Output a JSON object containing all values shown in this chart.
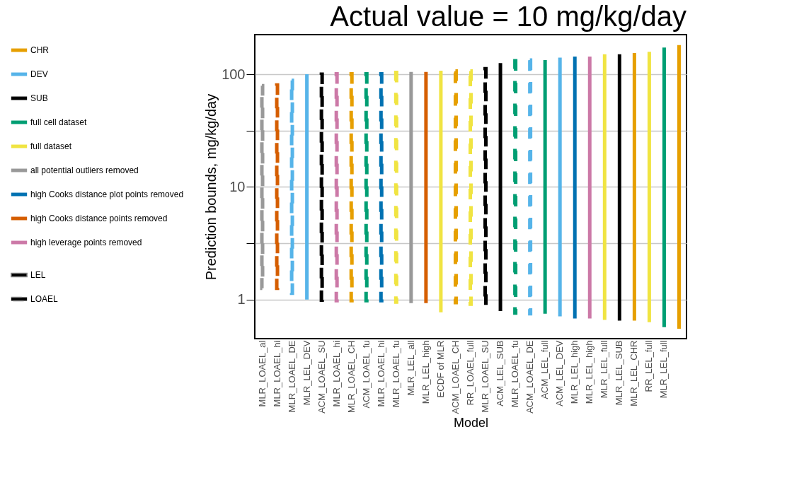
{
  "chart_data": {
    "type": "bar",
    "title": "Actual value = 10 mg/kg/day",
    "xlabel": "Model",
    "ylabel": "Prediction bounds, mg/kg/day",
    "categories": [
      "MLR_LOAEL_al",
      "MLR_LOAEL_hi",
      "MLR_LOAEL_DE",
      "MLR_LEL_DEV",
      "ACM_LOAEL_SU",
      "MLR_LOAEL_hi",
      "MLR_LOAEL_CH",
      "ACM_LOAEL_fu",
      "MLR_LOAEL_hi",
      "MLR_LOAEL_fu",
      "MLR_LEL_all",
      "MLR_LEL_high",
      "ECDF of MLR",
      "ACM_LOAEL_CH",
      "RR_LOAEL_full",
      "MLR_LOAEL_SU",
      "ACM_LEL_SUB",
      "MLR_LOAEL_fu",
      "ACM_LOAEL_DE",
      "ACM_LEL_full",
      "ACM_LEL_DEV",
      "MLR_LEL_high",
      "MLR_LEL_high",
      "MLR_LEL_full",
      "MLR_LEL_SUB",
      "MLR_LEL_CHR",
      "RR_LEL_full",
      "MLR_LEL_full",
      null
    ],
    "series": [
      {
        "name": "CHR",
        "color": "#e69f00",
        "line_style": "solid",
        "values": [
          null,
          null,
          null,
          null,
          null,
          null,
          null,
          null,
          null,
          null,
          null,
          null,
          null,
          null,
          null,
          null,
          null,
          null,
          null,
          null,
          null,
          null,
          null,
          null,
          null,
          154,
          null,
          null,
          181
        ],
        "base": [
          null,
          null,
          null,
          null,
          null,
          null,
          null,
          null,
          null,
          null,
          null,
          null,
          null,
          null,
          null,
          null,
          null,
          null,
          null,
          null,
          null,
          null,
          null,
          null,
          null,
          0.65,
          null,
          null,
          0.55
        ]
      },
      {
        "name": "DEV",
        "color": "#56b4e9",
        "line_style": "solid",
        "values": [
          null,
          null,
          null,
          99,
          null,
          null,
          null,
          null,
          null,
          null,
          null,
          null,
          null,
          null,
          null,
          null,
          null,
          null,
          null,
          null,
          140,
          null,
          null,
          null,
          null,
          null,
          null,
          null,
          null
        ],
        "base": [
          null,
          null,
          null,
          1.0,
          null,
          null,
          null,
          null,
          null,
          null,
          null,
          null,
          null,
          null,
          null,
          null,
          null,
          null,
          null,
          null,
          0.71,
          null,
          null,
          null,
          null,
          null,
          null,
          null,
          null
        ]
      },
      {
        "name": "SUB",
        "color": "#000000",
        "line_style": "solid",
        "values": [
          null,
          null,
          null,
          null,
          null,
          null,
          null,
          null,
          null,
          null,
          null,
          null,
          null,
          null,
          null,
          null,
          125,
          null,
          null,
          null,
          null,
          null,
          null,
          null,
          150,
          null,
          null,
          null,
          null
        ],
        "base": [
          null,
          null,
          null,
          null,
          null,
          null,
          null,
          null,
          null,
          null,
          null,
          null,
          null,
          null,
          null,
          null,
          0.79,
          null,
          null,
          null,
          null,
          null,
          null,
          null,
          0.65,
          null,
          null,
          null,
          null
        ]
      },
      {
        "name": "full cell dataset",
        "color": "#009e73",
        "line_style": "solid",
        "values": [
          null,
          null,
          null,
          null,
          null,
          null,
          null,
          null,
          null,
          null,
          null,
          null,
          null,
          null,
          null,
          null,
          null,
          null,
          null,
          133,
          null,
          null,
          null,
          null,
          null,
          null,
          null,
          172,
          null
        ],
        "base": [
          null,
          null,
          null,
          null,
          null,
          null,
          null,
          null,
          null,
          null,
          null,
          null,
          null,
          null,
          null,
          null,
          null,
          null,
          null,
          0.75,
          null,
          null,
          null,
          null,
          null,
          null,
          null,
          0.57,
          null
        ]
      },
      {
        "name": "full dataset",
        "color": "#f0e442",
        "line_style": "solid",
        "values": [
          null,
          null,
          null,
          null,
          null,
          null,
          null,
          null,
          null,
          null,
          null,
          null,
          107,
          null,
          null,
          null,
          null,
          null,
          null,
          null,
          null,
          null,
          null,
          150,
          null,
          null,
          158,
          null,
          null
        ],
        "base": [
          null,
          null,
          null,
          null,
          null,
          null,
          null,
          null,
          null,
          null,
          null,
          null,
          0.77,
          null,
          null,
          null,
          null,
          null,
          null,
          null,
          null,
          null,
          null,
          0.66,
          null,
          null,
          0.63,
          null,
          null
        ]
      },
      {
        "name": "all potential outliers removed",
        "color": "#999999",
        "line_style": "solid",
        "values": [
          null,
          null,
          null,
          null,
          null,
          null,
          null,
          null,
          null,
          null,
          104,
          null,
          null,
          null,
          null,
          null,
          null,
          null,
          null,
          null,
          null,
          null,
          null,
          null,
          null,
          null,
          null,
          null,
          null
        ],
        "base": [
          null,
          null,
          null,
          null,
          null,
          null,
          null,
          null,
          null,
          null,
          0.93,
          null,
          null,
          null,
          null,
          null,
          null,
          null,
          null,
          null,
          null,
          null,
          null,
          null,
          null,
          null,
          null,
          null,
          null
        ]
      },
      {
        "name": "high Cooks distance plot points removed",
        "color": "#0072b2",
        "line_style": "solid",
        "values": [
          null,
          null,
          null,
          null,
          null,
          null,
          null,
          null,
          null,
          null,
          null,
          null,
          null,
          null,
          null,
          null,
          null,
          null,
          null,
          null,
          null,
          143,
          null,
          null,
          null,
          null,
          null,
          null,
          null
        ],
        "base": [
          null,
          null,
          null,
          null,
          null,
          null,
          null,
          null,
          null,
          null,
          null,
          null,
          null,
          null,
          null,
          null,
          null,
          null,
          null,
          null,
          null,
          0.68,
          null,
          null,
          null,
          null,
          null,
          null,
          null
        ]
      },
      {
        "name": "high Cooks distance points removed",
        "color": "#d55e00",
        "line_style": "solid",
        "values": [
          null,
          null,
          null,
          null,
          null,
          null,
          null,
          null,
          null,
          null,
          null,
          104,
          null,
          null,
          null,
          null,
          null,
          null,
          null,
          null,
          null,
          null,
          null,
          null,
          null,
          null,
          null,
          null,
          null
        ],
        "base": [
          null,
          null,
          null,
          null,
          null,
          null,
          null,
          null,
          null,
          null,
          null,
          0.93,
          null,
          null,
          null,
          null,
          null,
          null,
          null,
          null,
          null,
          null,
          null,
          null,
          null,
          null,
          null,
          null,
          null
        ]
      },
      {
        "name": "high leverage points removed",
        "color": "#cc79a7",
        "line_style": "solid",
        "values": [
          null,
          null,
          null,
          null,
          null,
          null,
          null,
          null,
          null,
          null,
          null,
          null,
          null,
          null,
          null,
          null,
          null,
          null,
          null,
          null,
          null,
          null,
          143,
          null,
          null,
          null,
          null,
          null,
          null
        ],
        "base": [
          null,
          null,
          null,
          null,
          null,
          null,
          null,
          null,
          null,
          null,
          null,
          null,
          null,
          null,
          null,
          null,
          null,
          null,
          null,
          null,
          null,
          null,
          0.68,
          null,
          null,
          null,
          null,
          null,
          null
        ]
      },
      {
        "color": "#e69f00",
        "line_style": "dashed",
        "values": [
          null,
          null,
          null,
          null,
          null,
          null,
          100,
          null,
          null,
          null,
          null,
          null,
          null,
          106,
          null,
          null,
          null,
          null,
          null,
          null,
          null,
          null,
          null,
          null,
          null,
          null,
          null,
          null,
          null
        ],
        "base": [
          null,
          null,
          null,
          null,
          null,
          null,
          0.98,
          null,
          null,
          null,
          null,
          null,
          null,
          0.94,
          null,
          null,
          null,
          null,
          null,
          null,
          null,
          null,
          null,
          null,
          null,
          null,
          null,
          null,
          null
        ]
      },
      {
        "color": "#56b4e9",
        "line_style": "dashed",
        "values": [
          null,
          null,
          87,
          null,
          null,
          null,
          null,
          null,
          null,
          null,
          null,
          null,
          null,
          null,
          null,
          null,
          null,
          null,
          133,
          null,
          null,
          null,
          null,
          null,
          null,
          null,
          null,
          null,
          null
        ],
        "base": [
          null,
          null,
          1.14,
          null,
          null,
          null,
          null,
          null,
          null,
          null,
          null,
          null,
          null,
          null,
          null,
          null,
          null,
          null,
          0.75,
          null,
          null,
          null,
          null,
          null,
          null,
          null,
          null,
          null,
          null
        ]
      },
      {
        "color": "#000000",
        "line_style": "dashed",
        "values": [
          null,
          null,
          null,
          null,
          99,
          null,
          null,
          null,
          null,
          null,
          null,
          null,
          null,
          null,
          null,
          111,
          null,
          null,
          null,
          null,
          null,
          null,
          null,
          null,
          null,
          null,
          null,
          null,
          null
        ],
        "base": [
          null,
          null,
          null,
          null,
          0.99,
          null,
          null,
          null,
          null,
          null,
          null,
          null,
          null,
          null,
          null,
          0.87,
          null,
          null,
          null,
          null,
          null,
          null,
          null,
          null,
          null,
          null,
          null,
          null,
          null
        ]
      },
      {
        "color": "#009e73",
        "line_style": "dashed",
        "values": [
          null,
          null,
          null,
          null,
          null,
          null,
          null,
          100,
          null,
          null,
          null,
          null,
          null,
          null,
          null,
          null,
          null,
          131,
          null,
          null,
          null,
          null,
          null,
          null,
          null,
          null,
          null,
          null,
          null
        ],
        "base": [
          null,
          null,
          null,
          null,
          null,
          null,
          null,
          0.98,
          null,
          null,
          null,
          null,
          null,
          null,
          null,
          null,
          null,
          0.76,
          null,
          null,
          null,
          null,
          null,
          null,
          null,
          null,
          null,
          null,
          null
        ]
      },
      {
        "color": "#f0e442",
        "line_style": "dashed",
        "values": [
          null,
          null,
          null,
          null,
          null,
          null,
          null,
          null,
          null,
          103,
          null,
          null,
          null,
          null,
          106,
          null,
          null,
          null,
          null,
          null,
          null,
          null,
          null,
          null,
          null,
          null,
          null,
          null,
          null
        ],
        "base": [
          null,
          null,
          null,
          null,
          null,
          null,
          null,
          null,
          null,
          0.95,
          null,
          null,
          null,
          null,
          0.91,
          null,
          null,
          null,
          null,
          null,
          null,
          null,
          null,
          null,
          null,
          null,
          null,
          null,
          null
        ]
      },
      {
        "color": "#999999",
        "line_style": "dashed",
        "values": [
          78,
          null,
          null,
          null,
          null,
          null,
          null,
          null,
          null,
          null,
          null,
          null,
          null,
          null,
          null,
          null,
          null,
          null,
          null,
          null,
          null,
          null,
          null,
          null,
          null,
          null,
          null,
          null,
          null
        ],
        "base": [
          1.26,
          null,
          null,
          null,
          null,
          null,
          null,
          null,
          null,
          null,
          null,
          null,
          null,
          null,
          null,
          null,
          null,
          null,
          null,
          null,
          null,
          null,
          null,
          null,
          null,
          null,
          null,
          null,
          null
        ]
      },
      {
        "color": "#0072b2",
        "line_style": "dashed",
        "values": [
          null,
          null,
          null,
          null,
          null,
          null,
          null,
          null,
          100,
          null,
          null,
          null,
          null,
          null,
          null,
          null,
          null,
          null,
          null,
          null,
          null,
          null,
          null,
          null,
          null,
          null,
          null,
          null,
          null
        ],
        "base": [
          null,
          null,
          null,
          null,
          null,
          null,
          null,
          null,
          0.98,
          null,
          null,
          null,
          null,
          null,
          null,
          null,
          null,
          null,
          null,
          null,
          null,
          null,
          null,
          null,
          null,
          null,
          null,
          null,
          null
        ]
      },
      {
        "color": "#d55e00",
        "line_style": "dashed",
        "values": [
          null,
          79,
          null,
          null,
          null,
          null,
          null,
          null,
          null,
          null,
          null,
          null,
          null,
          null,
          null,
          null,
          null,
          null,
          null,
          null,
          null,
          null,
          null,
          null,
          null,
          null,
          null,
          null,
          null
        ],
        "base": [
          null,
          1.26,
          null,
          null,
          null,
          null,
          null,
          null,
          null,
          null,
          null,
          null,
          null,
          null,
          null,
          null,
          null,
          null,
          null,
          null,
          null,
          null,
          null,
          null,
          null,
          null,
          null,
          null,
          null
        ]
      },
      {
        "color": "#cc79a7",
        "line_style": "dashed",
        "values": [
          null,
          null,
          null,
          null,
          null,
          100,
          null,
          null,
          null,
          null,
          null,
          null,
          null,
          null,
          null,
          null,
          null,
          null,
          null,
          null,
          null,
          null,
          null,
          null,
          null,
          null,
          null,
          null,
          null
        ],
        "base": [
          null,
          null,
          null,
          null,
          null,
          0.98,
          null,
          null,
          null,
          null,
          null,
          null,
          null,
          null,
          null,
          null,
          null,
          null,
          null,
          null,
          null,
          null,
          null,
          null,
          null,
          null,
          null,
          null,
          null
        ]
      }
    ],
    "annotations": [
      "LEL",
      "LOAEL"
    ],
    "log": true,
    "ylim": [
      0.45,
      225
    ],
    "yticks": [
      1,
      {
        "value": 3.162,
        "label": null
      },
      10,
      {
        "value": 31.62,
        "label": null
      },
      100
    ],
    "grid": "y",
    "legend": "left"
  }
}
